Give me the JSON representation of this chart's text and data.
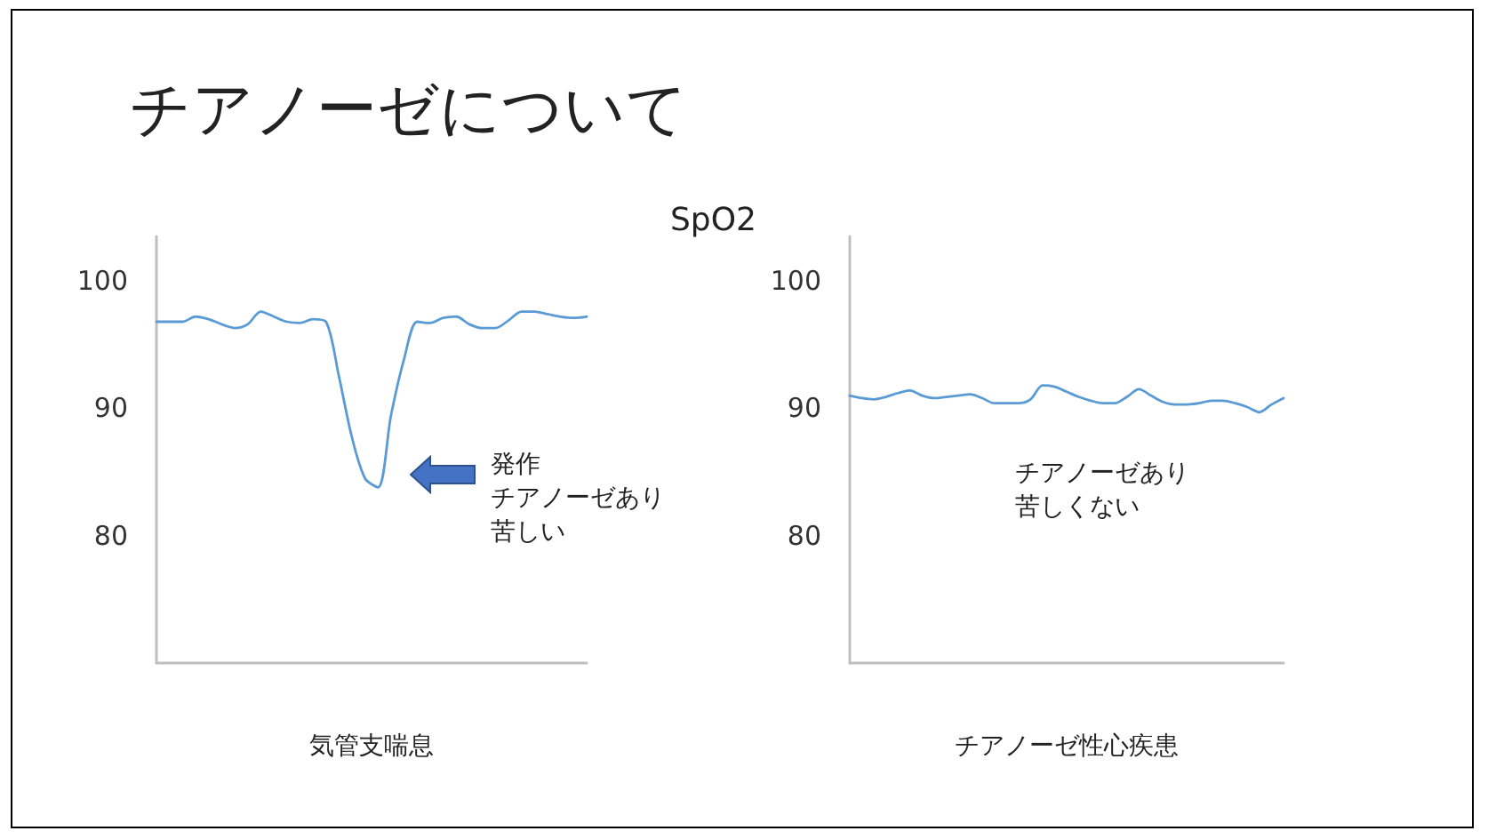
{
  "chart_data": [
    {
      "type": "line",
      "title": "チアノーゼについて",
      "xlabel": "気管支喘息",
      "annotations": [
        "発作",
        "チアノーゼあり",
        "苦しい"
      ],
      "marker": "none",
      "ylim": [
        70,
        103.5
      ],
      "yticks": [
        80,
        90,
        100
      ],
      "categories": [
        null,
        null,
        null,
        null,
        null,
        null,
        null,
        null,
        null,
        null,
        null,
        null,
        null,
        null,
        null,
        null,
        null,
        null,
        null,
        null,
        null,
        null,
        null,
        null,
        null,
        null,
        null,
        null,
        null,
        null,
        null,
        null,
        null,
        null
      ],
      "series": [
        {
          "color": "#5b9bd5",
          "values": [
            96.8,
            96.8,
            96.8,
            97.2,
            97.0,
            96.6,
            96.3,
            96.6,
            97.6,
            97.2,
            96.8,
            96.7,
            97.0,
            96.8,
            92.5,
            87.7,
            84.5,
            83.8,
            89.5,
            93.9,
            96.8,
            96.7,
            97.1,
            97.2,
            96.6,
            96.3,
            96.3,
            96.9,
            97.6,
            97.6,
            97.4,
            97.2,
            97.1,
            97.2
          ]
        }
      ]
    },
    {
      "type": "line",
      "title": "SpO2",
      "xlabel": "チアノーゼ性心疾患",
      "annotations": [
        "チアノーゼあり",
        "苦しくない"
      ],
      "marker": "none",
      "ylim": [
        70,
        103.5
      ],
      "yticks": [
        80,
        90,
        100
      ],
      "categories": [
        null,
        null,
        null,
        null,
        null,
        null,
        null,
        null,
        null,
        null,
        null,
        null,
        null,
        null,
        null,
        null,
        null,
        null,
        null,
        null,
        null,
        null,
        null,
        null,
        null,
        null,
        null,
        null,
        null,
        null,
        null,
        null,
        null,
        null,
        null,
        null,
        null
      ],
      "series": [
        {
          "color": "#5b9bd5",
          "values": [
            91.0,
            90.8,
            90.7,
            90.9,
            91.2,
            91.4,
            91.0,
            90.8,
            90.9,
            91.0,
            91.1,
            90.8,
            90.4,
            90.4,
            90.4,
            90.7,
            91.8,
            91.7,
            91.3,
            90.9,
            90.6,
            90.4,
            90.4,
            90.9,
            91.5,
            91.0,
            90.5,
            90.3,
            90.3,
            90.4,
            90.6,
            90.6,
            90.4,
            90.1,
            89.7,
            90.3,
            90.8
          ]
        }
      ]
    }
  ]
}
